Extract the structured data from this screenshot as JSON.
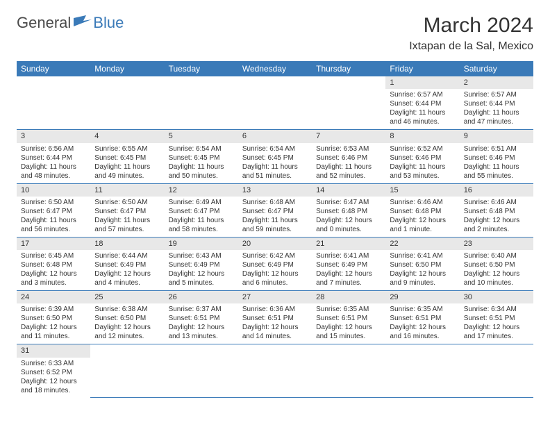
{
  "brand": {
    "part1": "General",
    "part2": "Blue"
  },
  "title": "March 2024",
  "location": "Ixtapan de la Sal, Mexico",
  "colors": {
    "header_bg": "#3a7ab8",
    "header_text": "#ffffff",
    "daynum_bg": "#e8e8e8",
    "border": "#3a7ab8",
    "body_text": "#333333",
    "brand_grey": "#4a4a4a",
    "brand_blue": "#3a7ab8"
  },
  "weekdays": [
    "Sunday",
    "Monday",
    "Tuesday",
    "Wednesday",
    "Thursday",
    "Friday",
    "Saturday"
  ],
  "weeks": [
    [
      null,
      null,
      null,
      null,
      null,
      {
        "n": "1",
        "sr": "6:57 AM",
        "ss": "6:44 PM",
        "dl": "11 hours and 46 minutes."
      },
      {
        "n": "2",
        "sr": "6:57 AM",
        "ss": "6:44 PM",
        "dl": "11 hours and 47 minutes."
      }
    ],
    [
      {
        "n": "3",
        "sr": "6:56 AM",
        "ss": "6:44 PM",
        "dl": "11 hours and 48 minutes."
      },
      {
        "n": "4",
        "sr": "6:55 AM",
        "ss": "6:45 PM",
        "dl": "11 hours and 49 minutes."
      },
      {
        "n": "5",
        "sr": "6:54 AM",
        "ss": "6:45 PM",
        "dl": "11 hours and 50 minutes."
      },
      {
        "n": "6",
        "sr": "6:54 AM",
        "ss": "6:45 PM",
        "dl": "11 hours and 51 minutes."
      },
      {
        "n": "7",
        "sr": "6:53 AM",
        "ss": "6:46 PM",
        "dl": "11 hours and 52 minutes."
      },
      {
        "n": "8",
        "sr": "6:52 AM",
        "ss": "6:46 PM",
        "dl": "11 hours and 53 minutes."
      },
      {
        "n": "9",
        "sr": "6:51 AM",
        "ss": "6:46 PM",
        "dl": "11 hours and 55 minutes."
      }
    ],
    [
      {
        "n": "10",
        "sr": "6:50 AM",
        "ss": "6:47 PM",
        "dl": "11 hours and 56 minutes."
      },
      {
        "n": "11",
        "sr": "6:50 AM",
        "ss": "6:47 PM",
        "dl": "11 hours and 57 minutes."
      },
      {
        "n": "12",
        "sr": "6:49 AM",
        "ss": "6:47 PM",
        "dl": "11 hours and 58 minutes."
      },
      {
        "n": "13",
        "sr": "6:48 AM",
        "ss": "6:47 PM",
        "dl": "11 hours and 59 minutes."
      },
      {
        "n": "14",
        "sr": "6:47 AM",
        "ss": "6:48 PM",
        "dl": "12 hours and 0 minutes."
      },
      {
        "n": "15",
        "sr": "6:46 AM",
        "ss": "6:48 PM",
        "dl": "12 hours and 1 minute."
      },
      {
        "n": "16",
        "sr": "6:46 AM",
        "ss": "6:48 PM",
        "dl": "12 hours and 2 minutes."
      }
    ],
    [
      {
        "n": "17",
        "sr": "6:45 AM",
        "ss": "6:48 PM",
        "dl": "12 hours and 3 minutes."
      },
      {
        "n": "18",
        "sr": "6:44 AM",
        "ss": "6:49 PM",
        "dl": "12 hours and 4 minutes."
      },
      {
        "n": "19",
        "sr": "6:43 AM",
        "ss": "6:49 PM",
        "dl": "12 hours and 5 minutes."
      },
      {
        "n": "20",
        "sr": "6:42 AM",
        "ss": "6:49 PM",
        "dl": "12 hours and 6 minutes."
      },
      {
        "n": "21",
        "sr": "6:41 AM",
        "ss": "6:49 PM",
        "dl": "12 hours and 7 minutes."
      },
      {
        "n": "22",
        "sr": "6:41 AM",
        "ss": "6:50 PM",
        "dl": "12 hours and 9 minutes."
      },
      {
        "n": "23",
        "sr": "6:40 AM",
        "ss": "6:50 PM",
        "dl": "12 hours and 10 minutes."
      }
    ],
    [
      {
        "n": "24",
        "sr": "6:39 AM",
        "ss": "6:50 PM",
        "dl": "12 hours and 11 minutes."
      },
      {
        "n": "25",
        "sr": "6:38 AM",
        "ss": "6:50 PM",
        "dl": "12 hours and 12 minutes."
      },
      {
        "n": "26",
        "sr": "6:37 AM",
        "ss": "6:51 PM",
        "dl": "12 hours and 13 minutes."
      },
      {
        "n": "27",
        "sr": "6:36 AM",
        "ss": "6:51 PM",
        "dl": "12 hours and 14 minutes."
      },
      {
        "n": "28",
        "sr": "6:35 AM",
        "ss": "6:51 PM",
        "dl": "12 hours and 15 minutes."
      },
      {
        "n": "29",
        "sr": "6:35 AM",
        "ss": "6:51 PM",
        "dl": "12 hours and 16 minutes."
      },
      {
        "n": "30",
        "sr": "6:34 AM",
        "ss": "6:51 PM",
        "dl": "12 hours and 17 minutes."
      }
    ],
    [
      {
        "n": "31",
        "sr": "6:33 AM",
        "ss": "6:52 PM",
        "dl": "12 hours and 18 minutes."
      },
      null,
      null,
      null,
      null,
      null,
      null
    ]
  ],
  "labels": {
    "sunrise": "Sunrise:",
    "sunset": "Sunset:",
    "daylight": "Daylight:"
  }
}
